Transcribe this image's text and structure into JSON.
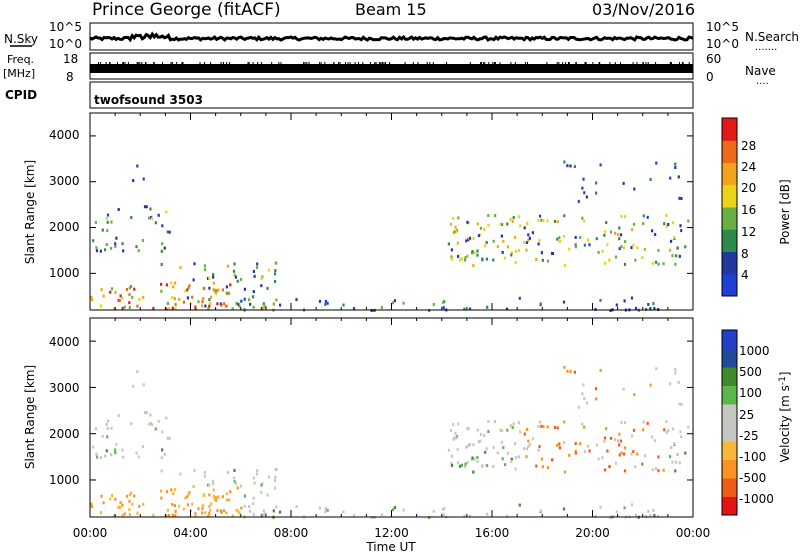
{
  "header": {
    "station": "Prince George (fitACF)",
    "beam": "Beam 15",
    "date": "03/Nov/2016"
  },
  "left_labels": {
    "nsky": "N.Sky",
    "freq_line1": "Freq.",
    "freq_line2": "[MHz]",
    "cpid": "CPID"
  },
  "right_labels": {
    "nsearch": "N.Search",
    "nsearch_dots": ".......",
    "nave": "Nave",
    "nave_dots": "...."
  },
  "cpid_value": "twofsound 3503",
  "xaxis_title": "Time UT",
  "colors": {
    "power_scale": [
      "#1f3fd6",
      "#23379c",
      "#2c8a4a",
      "#68b043",
      "#ecd31a",
      "#f0a51a",
      "#ef6a18",
      "#e21a1a"
    ],
    "velocity_scale": [
      "#e41414",
      "#f05c18",
      "#f7951e",
      "#f6b937",
      "#c7c7c2",
      "#c7c7c2",
      "#5ab84a",
      "#3f8a2a",
      "#224a9a",
      "#2440c8"
    ]
  },
  "chart_data": [
    {
      "type": "line",
      "name": "noise",
      "yticks": [
        "10^5",
        "10^0"
      ],
      "yticks_right": [
        "10^5",
        "10^0"
      ],
      "level": 0.35
    },
    {
      "type": "bar",
      "name": "frequency",
      "yticks": [
        "18",
        "8"
      ],
      "yticks_right": [
        "60",
        "0"
      ],
      "ylim": [
        8,
        18
      ],
      "level": 12
    },
    {
      "type": "heatmap",
      "name": "power",
      "ylabel": "Slant Range [km]",
      "xticks": [
        "00:00",
        "04:00",
        "08:00",
        "12:00",
        "16:00",
        "20:00",
        "00:00"
      ],
      "xlim": [
        0,
        24
      ],
      "yticks": [
        "4000",
        "3000",
        "2000",
        "1000"
      ],
      "ylim": [
        200,
        4500
      ],
      "colorbar_label": "Power [dB]",
      "colorbar_ticks": [
        "28",
        "24",
        "20",
        "16",
        "12",
        "8",
        "4"
      ]
    },
    {
      "type": "heatmap",
      "name": "velocity",
      "ylabel": "Slant Range [km]",
      "xticks": [
        "00:00",
        "04:00",
        "08:00",
        "12:00",
        "16:00",
        "20:00",
        "00:00"
      ],
      "xlim": [
        0,
        24
      ],
      "yticks": [
        "4000",
        "3000",
        "2000",
        "1000"
      ],
      "ylim": [
        200,
        4500
      ],
      "colorbar_label": "Velocity [m s^-1]",
      "colorbar_ticks": [
        "1000",
        "500",
        "100",
        "25",
        "-25",
        "-100",
        "-500",
        "-1000"
      ]
    }
  ]
}
